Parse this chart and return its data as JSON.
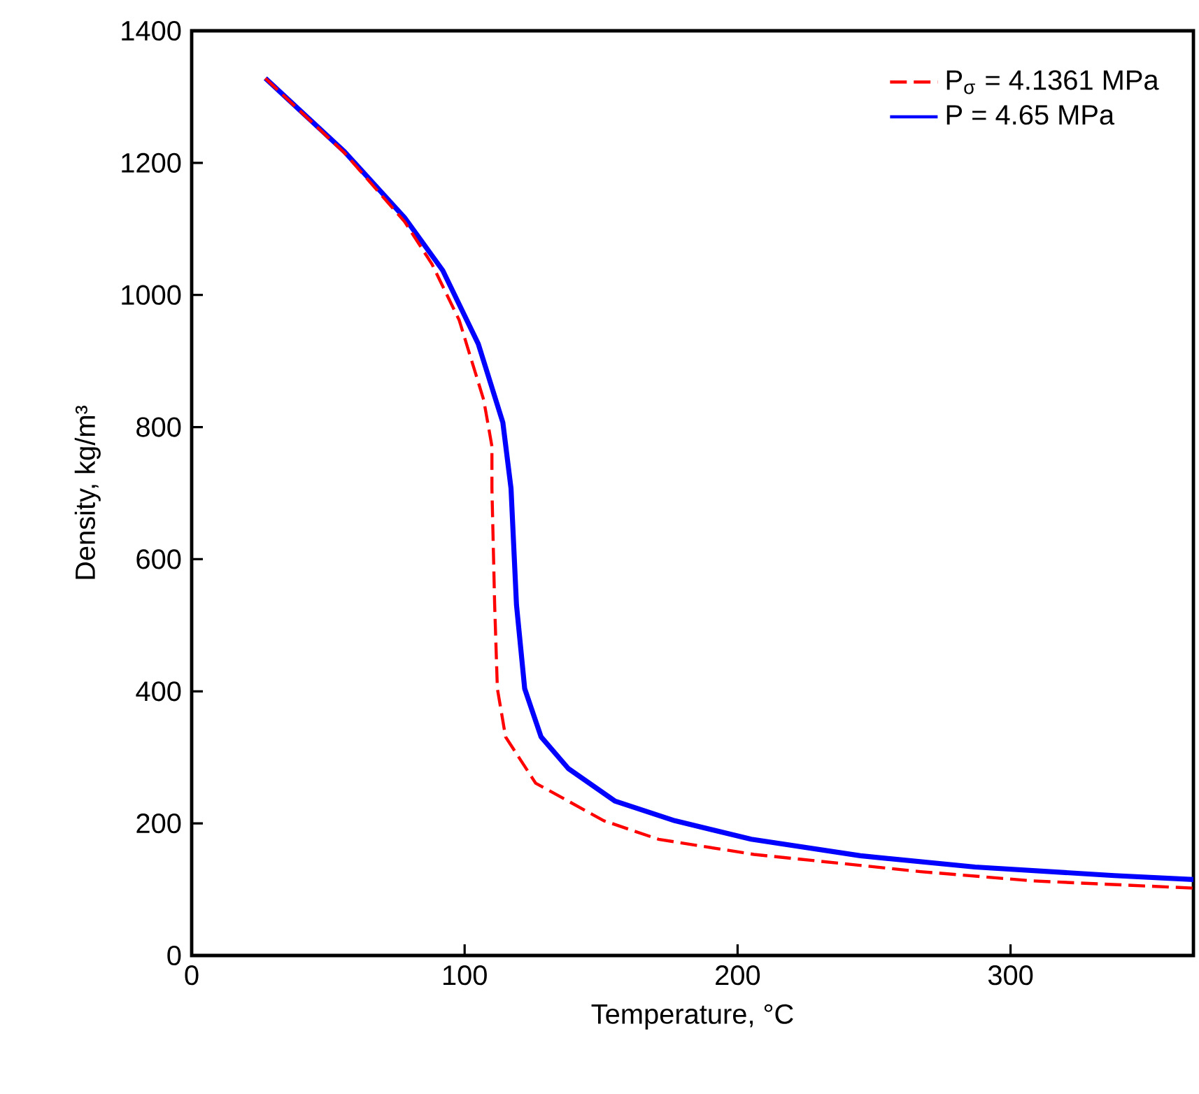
{
  "chart_data": {
    "type": "line",
    "xlabel": "Temperature, °C",
    "ylabel": "Density, kg/m³",
    "xlim": [
      0,
      367
    ],
    "ylim": [
      0,
      1400
    ],
    "xticks": [
      0,
      100,
      200,
      300
    ],
    "yticks": [
      0,
      200,
      400,
      600,
      800,
      1000,
      1200,
      1400
    ],
    "grid": false,
    "legend": "top right",
    "marker": "none",
    "series": [
      {
        "name": "P$_{σ}$ = 4.1361 MPa",
        "color": "#ff0000",
        "line_style": "dashed",
        "x": [
          27,
          56,
          78,
          88,
          98,
          107,
          110,
          110,
          111,
          112,
          115,
          126,
          151,
          171,
          206,
          267,
          308,
          367
        ],
        "values": [
          1328,
          1215,
          1111,
          1047,
          962,
          841,
          771,
          707,
          531,
          404,
          331,
          261,
          204,
          176,
          153,
          127,
          113,
          102
        ]
      },
      {
        "name": "P = 4.65 MPa",
        "color": "#0000ff",
        "line_style": "solid",
        "x": [
          27,
          56,
          78,
          92,
          105,
          114,
          117,
          119,
          122,
          128,
          138,
          155,
          177,
          205,
          245,
          287,
          338,
          367
        ],
        "values": [
          1328,
          1217,
          1117,
          1037,
          926,
          807,
          707,
          531,
          404,
          331,
          283,
          234,
          204,
          176,
          151,
          134,
          121,
          115
        ]
      }
    ]
  }
}
